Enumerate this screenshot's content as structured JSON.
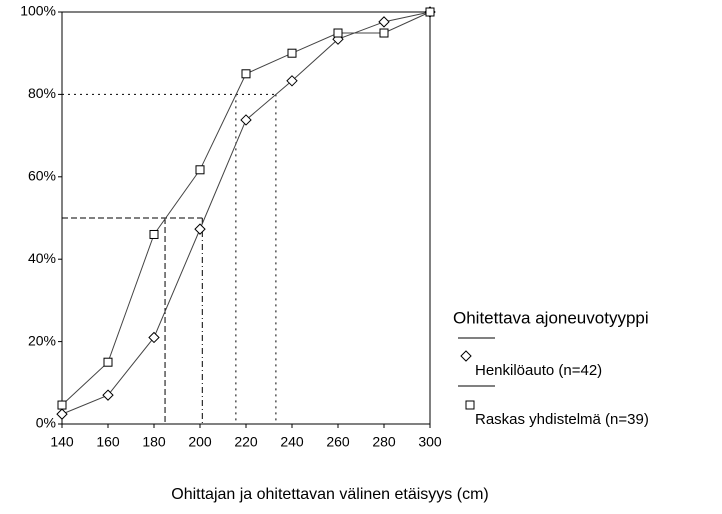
{
  "chart_data": {
    "type": "line",
    "xlabel": "Ohittajan ja ohitettavan välinen etäisyys (cm)",
    "legend_title": "Ohitettava ajoneuvotyyppi",
    "legend": "right",
    "grid": false,
    "x": [
      140,
      160,
      180,
      200,
      220,
      240,
      260,
      280,
      300
    ],
    "series": [
      {
        "name": "Henkilöauto (n=42)",
        "marker": "diamond",
        "color": "#444444",
        "values": [
          2.4,
          7,
          21,
          47.3,
          73.8,
          83.3,
          93.4,
          97.6,
          100
        ]
      },
      {
        "name": "Raskas yhdistelmä (n=39)",
        "marker": "square",
        "color": "#444444",
        "values": [
          4.6,
          15,
          46,
          61.7,
          85,
          90,
          94.9,
          94.9,
          100
        ]
      }
    ],
    "reference_lines": [
      {
        "y": 50,
        "x": [
          184.8,
          201
        ]
      },
      {
        "y": 80,
        "x": [
          215.6,
          233
        ]
      }
    ],
    "xlim": [
      140,
      300
    ],
    "xticks": [
      140,
      160,
      180,
      200,
      220,
      240,
      260,
      280,
      300
    ],
    "ylim": [
      0,
      100
    ],
    "yticks": [
      {
        "value": 0,
        "label": "0%"
      },
      {
        "value": 20,
        "label": "20%"
      },
      {
        "value": 40,
        "label": "40%"
      },
      {
        "value": 60,
        "label": "60%"
      },
      {
        "value": 80,
        "label": "80%"
      },
      {
        "value": 100,
        "label": "100%"
      }
    ]
  }
}
